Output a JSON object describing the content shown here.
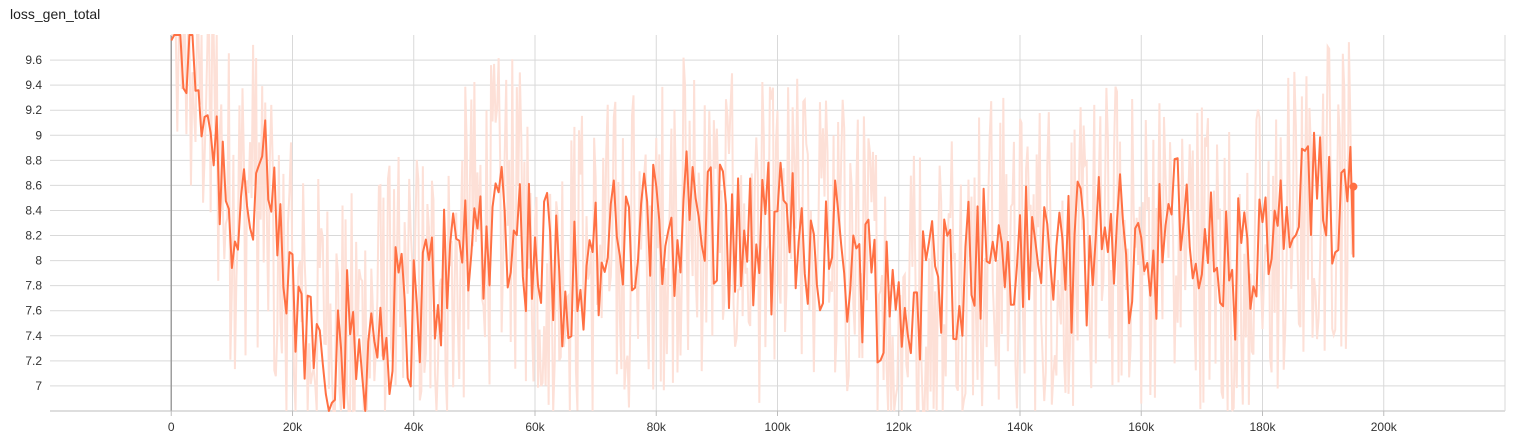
{
  "chart_data": {
    "type": "line",
    "title": "loss_gen_total",
    "xlabel": "",
    "ylabel": "",
    "xlim": [
      -20000,
      220000
    ],
    "ylim": [
      6.8,
      9.8
    ],
    "x_ticks": [
      0,
      20000,
      40000,
      60000,
      80000,
      100000,
      120000,
      140000,
      160000,
      180000,
      200000
    ],
    "x_tick_labels": [
      "0",
      "20k",
      "40k",
      "60k",
      "80k",
      "100k",
      "120k",
      "140k",
      "160k",
      "180k",
      "200k"
    ],
    "y_ticks": [
      7.0,
      7.2,
      7.4,
      7.6,
      7.8,
      8.0,
      8.2,
      8.4,
      8.6,
      8.8,
      9.0,
      9.2,
      9.4,
      9.6
    ],
    "y_tick_labels": [
      "7",
      "7.2",
      "7.4",
      "7.6",
      "7.8",
      "8",
      "8.2",
      "8.4",
      "8.6",
      "8.8",
      "9",
      "9.2",
      "9.4",
      "9.6"
    ],
    "grid": true,
    "series": [
      {
        "color": "#ff7043",
        "raw_color": "#fde0d7",
        "x": [
          5000,
          10000,
          15000,
          20000,
          25000,
          30000,
          35000,
          40000,
          45000,
          50000,
          55000,
          60000,
          65000,
          70000,
          75000,
          80000,
          85000,
          90000,
          95000,
          100000,
          105000,
          110000,
          115000,
          120000,
          125000,
          130000,
          135000,
          140000,
          145000,
          150000,
          155000,
          160000,
          165000,
          170000,
          175000,
          180000,
          185000,
          190000,
          195000
        ],
        "y": [
          9.4,
          8.4,
          8.6,
          7.6,
          7.4,
          7.3,
          7.5,
          7.6,
          7.9,
          8.2,
          8.4,
          8.1,
          7.9,
          8.0,
          8.1,
          8.2,
          8.4,
          8.3,
          8.1,
          8.2,
          8.2,
          8.1,
          7.9,
          7.6,
          7.8,
          8.0,
          8.1,
          8.0,
          8.1,
          8.0,
          8.2,
          8.0,
          8.3,
          8.1,
          7.9,
          8.0,
          8.3,
          8.5,
          8.6
        ]
      }
    ],
    "last_point": {
      "x": 195000,
      "y": 8.59
    }
  }
}
